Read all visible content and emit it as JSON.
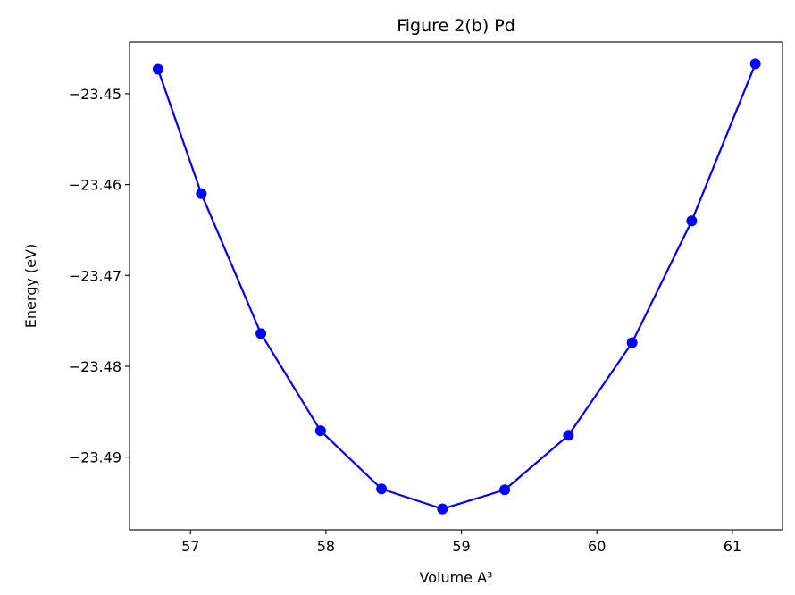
{
  "chart_data": {
    "type": "line",
    "title": "Figure 2(b) Pd",
    "xlabel": "Volume A³",
    "ylabel": "Energy (eV)",
    "xlim": [
      56.55,
      61.37
    ],
    "ylim": [
      -23.498,
      -23.4443
    ],
    "xticks": [
      57,
      58,
      59,
      60,
      61
    ],
    "xtick_labels": [
      "57",
      "58",
      "59",
      "60",
      "61"
    ],
    "yticks": [
      -23.45,
      -23.46,
      -23.47,
      -23.48,
      -23.49
    ],
    "ytick_labels": [
      "−23.45",
      "−23.46",
      "−23.47",
      "−23.48",
      "−23.49"
    ],
    "grid": false,
    "series": [
      {
        "color": "#0000ff",
        "marker": "circle",
        "x": [
          56.76,
          57.08,
          57.52,
          57.96,
          58.41,
          58.86,
          59.32,
          59.79,
          60.26,
          60.7,
          61.17
        ],
        "y": [
          -23.4473,
          -23.461,
          -23.4764,
          -23.4871,
          -23.4935,
          -23.4957,
          -23.4936,
          -23.4876,
          -23.4774,
          -23.464,
          -23.4467
        ]
      }
    ]
  }
}
